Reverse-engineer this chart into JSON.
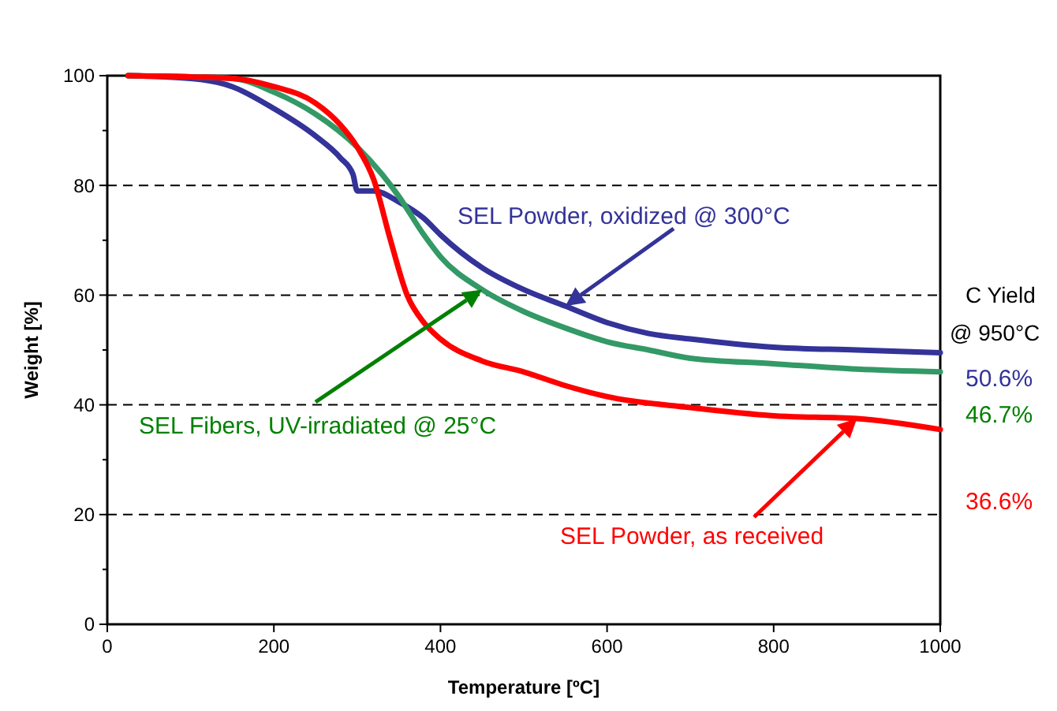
{
  "chart_data": {
    "type": "line",
    "xlabel": "Temperature [ºC]",
    "ylabel": "Weight [%]",
    "xlim": [
      0,
      1000
    ],
    "ylim": [
      0,
      100
    ],
    "xticks": [
      0,
      200,
      400,
      600,
      800,
      1000
    ],
    "yticks": [
      0,
      20,
      40,
      60,
      80,
      100
    ],
    "grid": "y",
    "marker": "none",
    "line_style": "solid",
    "series": [
      {
        "name": "SEL Powder, oxidized @ 300°C",
        "color": "#333399",
        "x": [
          25,
          100,
          150,
          200,
          250,
          280,
          295,
          300,
          320,
          350,
          380,
          400,
          450,
          500,
          550,
          600,
          650,
          700,
          800,
          900,
          1000
        ],
        "values": [
          100,
          99.5,
          98,
          94,
          89,
          85,
          82,
          79,
          79,
          77,
          74,
          71,
          65,
          61,
          58,
          55,
          53,
          52,
          50.5,
          50,
          49.5
        ]
      },
      {
        "name": "SEL Fibers, UV-irradiated @ 25°C",
        "color": "#339966",
        "x": [
          25,
          150,
          200,
          250,
          300,
          330,
          350,
          380,
          400,
          450,
          500,
          550,
          600,
          650,
          700,
          800,
          900,
          1000
        ],
        "values": [
          100,
          99.5,
          97,
          93,
          87,
          82,
          78,
          71,
          67,
          61,
          57,
          54,
          51.5,
          50,
          48.5,
          47.5,
          46.5,
          46
        ]
      },
      {
        "name": "SEL Powder, as received",
        "color": "#ff0000",
        "x": [
          25,
          150,
          200,
          250,
          280,
          300,
          320,
          340,
          360,
          380,
          400,
          450,
          500,
          550,
          600,
          700,
          800,
          900,
          1000
        ],
        "values": [
          100,
          99.5,
          98,
          95,
          91,
          87,
          81,
          70,
          60,
          55,
          52,
          48,
          46,
          43.5,
          41.5,
          39.5,
          38,
          37.5,
          35.5
        ]
      }
    ],
    "annotations": [
      "C Yield @ 950°C",
      "50.6%",
      "46.7%",
      "36.6%"
    ]
  }
}
